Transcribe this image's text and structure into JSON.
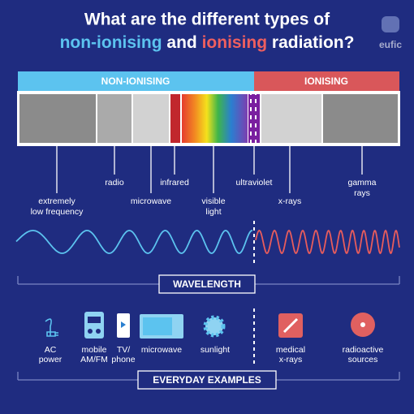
{
  "header": {
    "title_line1": "What are the different types of",
    "title_line2": [
      "non-ionising",
      "and",
      "ionising",
      "radiation?"
    ],
    "logo": "eufic"
  },
  "bands": {
    "non_ionising": "NON-IONISING",
    "ionising": "IONISING"
  },
  "spectrum": [
    {
      "label": [
        "extremely",
        "low frequency"
      ]
    },
    {
      "label": [
        "radio"
      ]
    },
    {
      "label": [
        "microwave"
      ]
    },
    {
      "label": [
        "infrared"
      ]
    },
    {
      "label": [
        "visible",
        "light"
      ]
    },
    {
      "label": [
        "ultraviolet"
      ]
    },
    {
      "label": [
        "x-rays"
      ]
    },
    {
      "label": [
        "gamma",
        "rays"
      ]
    }
  ],
  "wavelength_label": "WAVELENGTH",
  "examples": [
    {
      "label": [
        "AC",
        "power"
      ]
    },
    {
      "label": [
        "mobile",
        "AM/FM"
      ]
    },
    {
      "label": [
        "TV/",
        "phone"
      ]
    },
    {
      "label": [
        "microwave"
      ]
    },
    {
      "label": [
        "sunlight"
      ]
    },
    {
      "label": [
        "medical",
        "x-rays"
      ]
    },
    {
      "label": [
        "radioactive",
        "sources"
      ]
    }
  ],
  "examples_label": "EVERYDAY EXAMPLES"
}
